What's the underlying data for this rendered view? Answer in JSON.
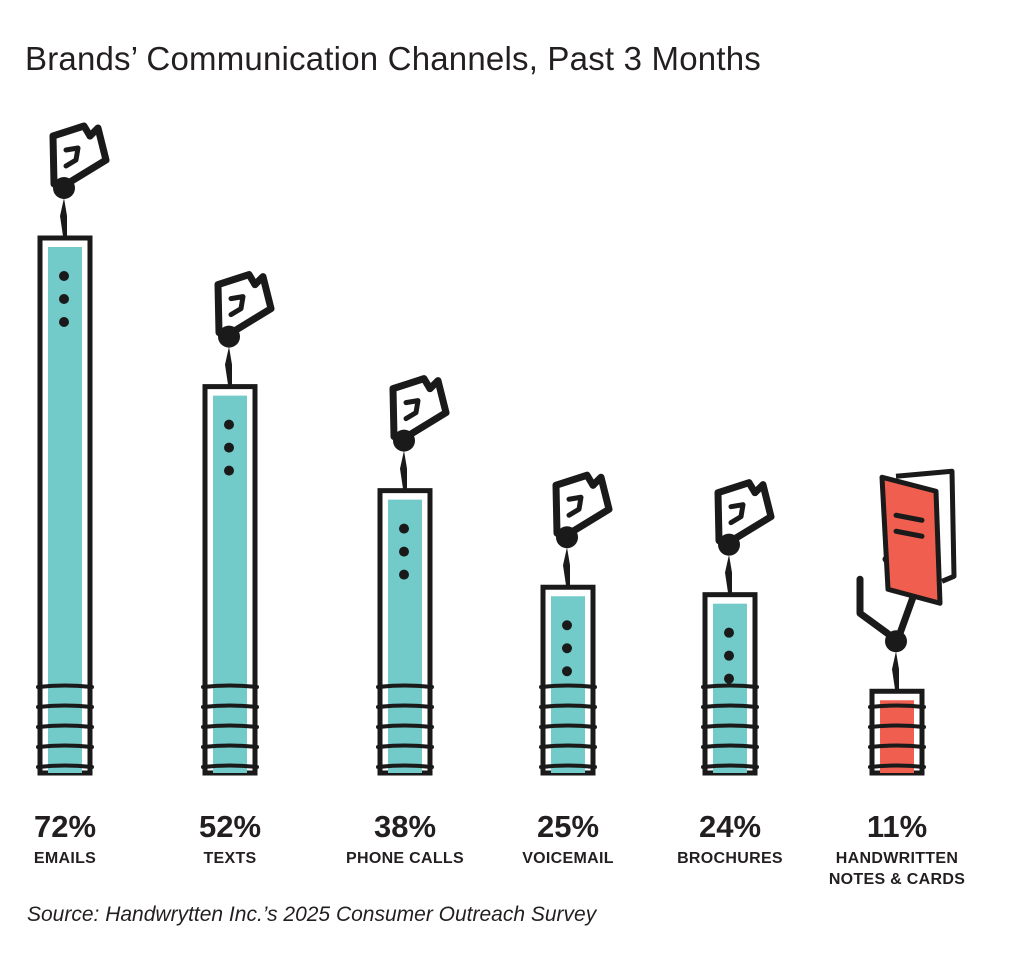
{
  "chart_data": {
    "type": "bar",
    "title": "Brands’ Communication Channels, Past 3 Months",
    "value_labels": [
      "72%",
      "52%",
      "38%",
      "25%",
      "24%",
      "11%"
    ],
    "categories": [
      "EMAILS",
      "TEXTS",
      "PHONE CALLS",
      "VOICEMAIL",
      "BROCHURES",
      "HANDWRITTEN NOTES & CARDS"
    ],
    "category_lines": [
      [
        "EMAILS"
      ],
      [
        "TEXTS"
      ],
      [
        "PHONE CALLS"
      ],
      [
        "VOICEMAIL"
      ],
      [
        "BROCHURES"
      ],
      [
        "HANDWRITTEN",
        "NOTES & CARDS"
      ]
    ],
    "values": [
      72,
      52,
      38,
      25,
      24,
      11
    ],
    "unit": "%",
    "ylim": [
      0,
      72
    ],
    "grid": false,
    "legend": "none",
    "highlight_index": 5,
    "colors": {
      "bar": "#72cbc9",
      "highlight": "#ef5e4f",
      "outline": "#1a1a1a",
      "card": "#ffffff"
    },
    "icons": {
      "default": "paper-note-icon",
      "highlight": "handwritten-card-icon"
    }
  },
  "source": "Source: Handwrytten Inc.’s 2025 Consumer Outreach Survey"
}
